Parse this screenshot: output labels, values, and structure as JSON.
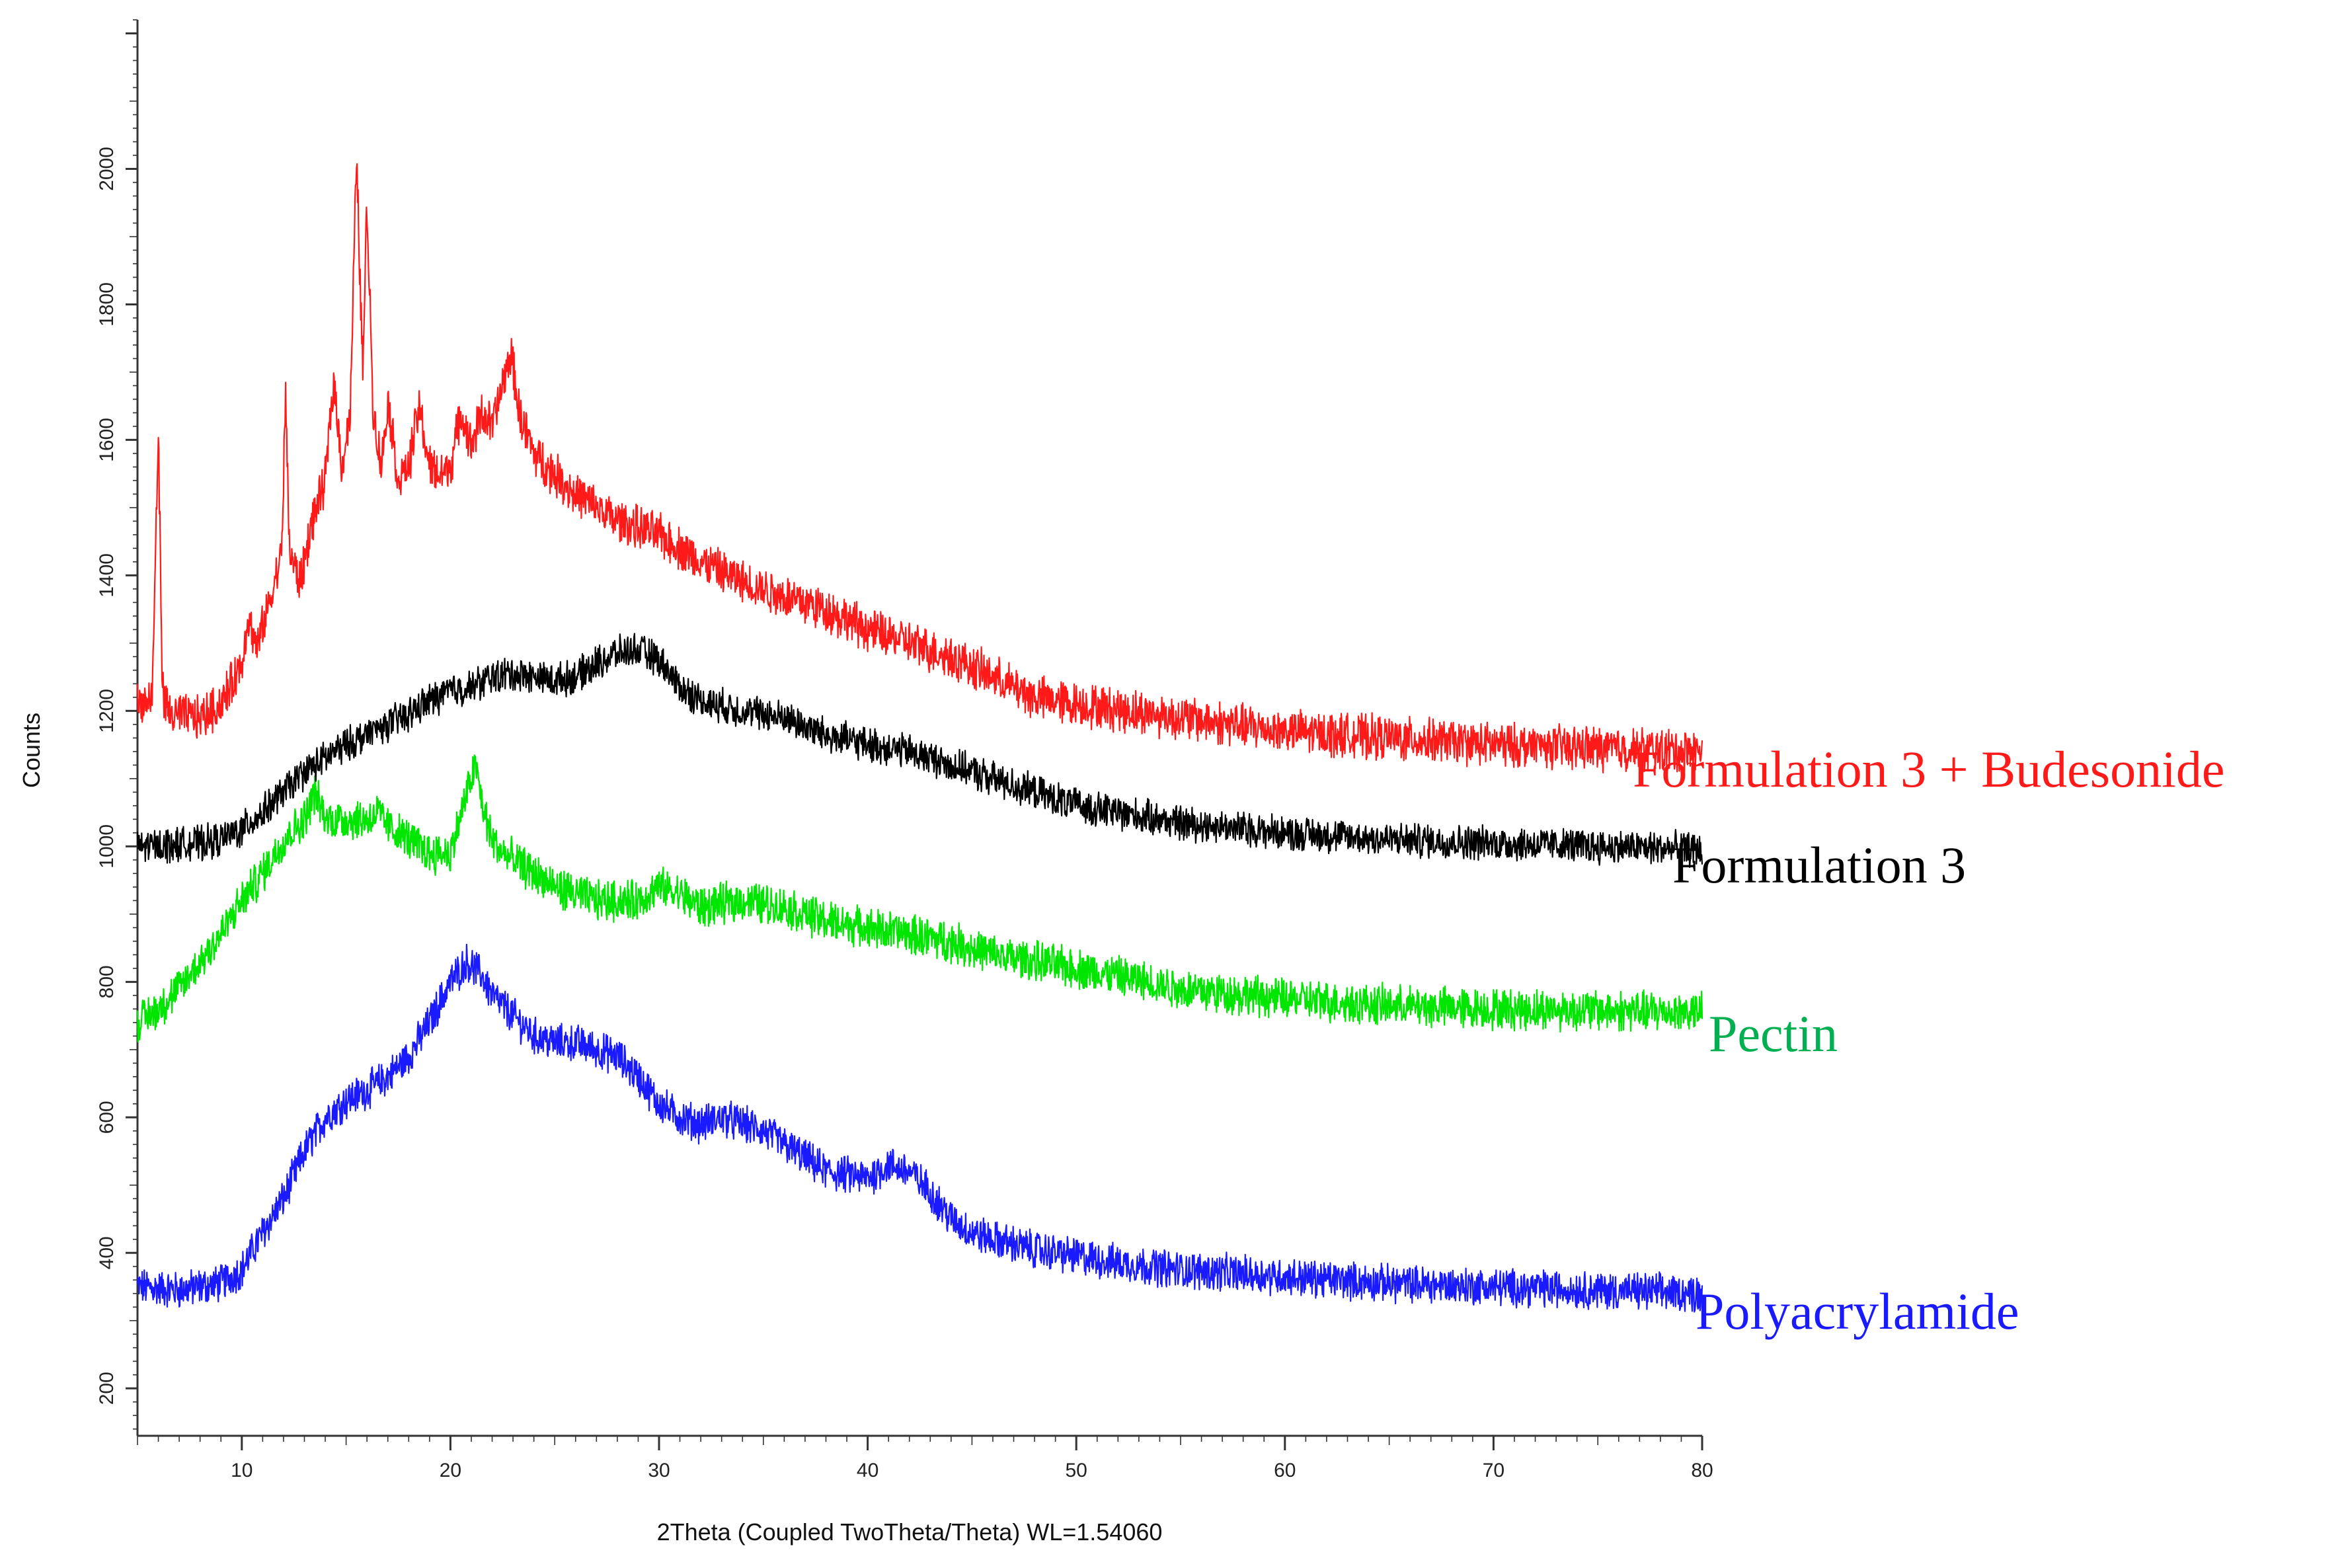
{
  "chart_data": {
    "type": "line",
    "title": "",
    "xlabel": "2Theta (Coupled TwoTheta/Theta) WL=1.54060",
    "ylabel": "Counts",
    "xlim": [
      5,
      80
    ],
    "ylim": [
      130,
      2220
    ],
    "x_ticks": [
      10,
      20,
      30,
      40,
      50,
      60,
      70,
      80
    ],
    "y_ticks": [
      200,
      400,
      600,
      800,
      1000,
      1200,
      1400,
      1600,
      1800,
      2000
    ],
    "grid": false,
    "legend": "inline labels at right end of each trace",
    "series": [
      {
        "name": "Formulation 3 + Budesonide",
        "color": "#ff1a1a",
        "noise": 28,
        "x": [
          5,
          5.7,
          6.0,
          6.2,
          6.5,
          8,
          9,
          10,
          10.3,
          10.7,
          11.5,
          11.9,
          12.1,
          12.3,
          12.8,
          13.3,
          14,
          14.4,
          14.8,
          15.2,
          15.5,
          15.8,
          16.0,
          16.3,
          16.7,
          17.0,
          17.5,
          18.0,
          18.5,
          19,
          19.5,
          20,
          20.5,
          21,
          21.5,
          22,
          22.5,
          22.9,
          23.3,
          24,
          25,
          26,
          28,
          30,
          32,
          34,
          36,
          38,
          40,
          42,
          44,
          46,
          48,
          50,
          55,
          60,
          65,
          70,
          75,
          80
        ],
        "y": [
          1210,
          1215,
          1610,
          1230,
          1195,
          1190,
          1210,
          1270,
          1340,
          1290,
          1380,
          1430,
          1660,
          1430,
          1390,
          1470,
          1540,
          1690,
          1560,
          1640,
          2020,
          1700,
          1950,
          1640,
          1560,
          1660,
          1540,
          1560,
          1650,
          1560,
          1550,
          1560,
          1640,
          1590,
          1640,
          1620,
          1680,
          1730,
          1640,
          1580,
          1550,
          1520,
          1480,
          1460,
          1420,
          1390,
          1370,
          1350,
          1320,
          1300,
          1280,
          1250,
          1220,
          1210,
          1190,
          1170,
          1160,
          1150,
          1145,
          1140
        ]
      },
      {
        "name": "Formulation 3",
        "color": "#000000",
        "noise": 22,
        "x": [
          5,
          8,
          9,
          10,
          11,
          12,
          13,
          14,
          15,
          16,
          17,
          18,
          19,
          20,
          21,
          22,
          23,
          24,
          25,
          26,
          27,
          28,
          29,
          30,
          31,
          32,
          34,
          36,
          38,
          40,
          42,
          44,
          46,
          48,
          50,
          55,
          60,
          65,
          70,
          75,
          80
        ],
        "y": [
          1000,
          1005,
          1010,
          1025,
          1050,
          1080,
          1110,
          1130,
          1150,
          1165,
          1180,
          1195,
          1215,
          1230,
          1235,
          1250,
          1255,
          1250,
          1245,
          1250,
          1270,
          1285,
          1290,
          1275,
          1235,
          1215,
          1200,
          1190,
          1165,
          1150,
          1140,
          1120,
          1100,
          1080,
          1060,
          1035,
          1020,
          1010,
          1005,
          1000,
          995
        ]
      },
      {
        "name": "Pectin",
        "color": "#00e600",
        "noise": 26,
        "x": [
          5,
          6,
          7,
          8,
          9,
          10,
          11,
          12,
          13,
          13.5,
          14,
          15,
          16,
          16.5,
          17,
          18,
          19,
          20,
          20.8,
          21.2,
          21.6,
          22,
          22.5,
          23,
          24,
          25,
          26,
          27,
          28,
          29,
          30,
          31,
          32,
          34,
          36,
          38,
          40,
          42,
          44,
          46,
          48,
          50,
          55,
          60,
          65,
          70,
          75,
          80
        ],
        "y": [
          740,
          760,
          790,
          830,
          870,
          920,
          960,
          1010,
          1040,
          1080,
          1040,
          1040,
          1040,
          1050,
          1030,
          1010,
          990,
          990,
          1080,
          1120,
          1050,
          1010,
          990,
          980,
          960,
          940,
          930,
          920,
          920,
          920,
          940,
          930,
          910,
          920,
          910,
          890,
          880,
          870,
          860,
          840,
          830,
          820,
          790,
          775,
          765,
          760,
          758,
          755
        ]
      },
      {
        "name": "Polyacrylamide",
        "color": "#1a1aff",
        "noise": 24,
        "x": [
          5,
          7,
          9,
          10,
          11,
          12,
          13,
          14,
          15,
          16,
          17,
          18,
          19,
          20,
          20.8,
          21.5,
          22,
          23,
          24,
          25,
          26,
          27,
          28,
          29,
          30,
          31,
          32,
          33,
          34,
          35,
          36,
          37,
          38,
          40,
          41,
          42,
          43,
          44,
          45,
          46,
          48,
          50,
          52,
          55,
          60,
          65,
          70,
          75,
          80
        ],
        "y": [
          350,
          345,
          355,
          375,
          430,
          480,
          550,
          600,
          625,
          640,
          660,
          690,
          740,
          800,
          830,
          810,
          780,
          750,
          720,
          710,
          710,
          700,
          690,
          660,
          620,
          600,
          590,
          600,
          590,
          580,
          560,
          540,
          520,
          510,
          530,
          520,
          490,
          450,
          430,
          420,
          405,
          395,
          385,
          375,
          365,
          355,
          350,
          345,
          340
        ]
      }
    ]
  }
}
